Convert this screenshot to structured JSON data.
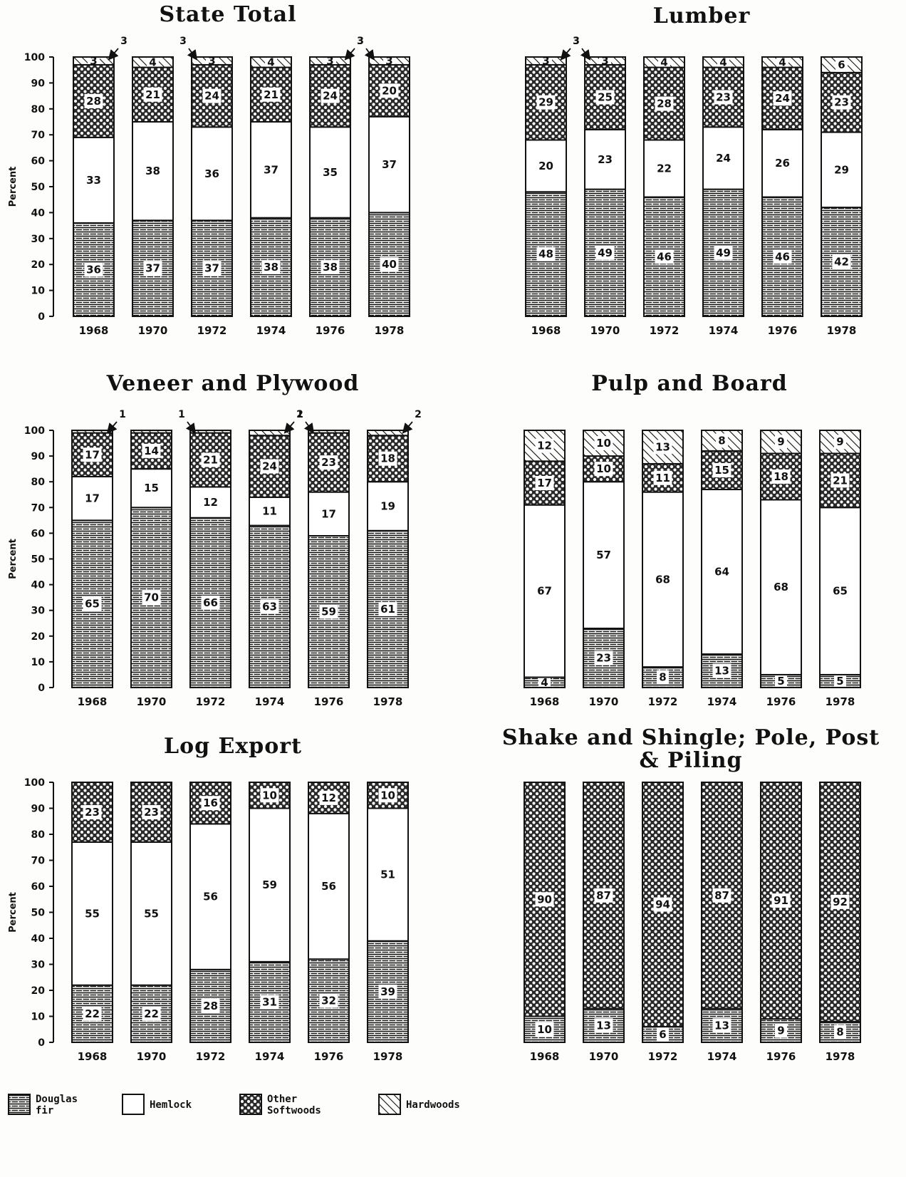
{
  "legend": {
    "items": [
      {
        "key": "douglas_fir",
        "label_lines": [
          "Douglas",
          "fir"
        ],
        "pattern": "pat-fir"
      },
      {
        "key": "hemlock",
        "label_lines": [
          "Hemlock"
        ],
        "pattern": "white"
      },
      {
        "key": "other_softwoods",
        "label_lines": [
          "Other",
          "Softwoods"
        ],
        "pattern": "pat-soft"
      },
      {
        "key": "hardwoods",
        "label_lines": [
          "Hardwoods"
        ],
        "pattern": "pat-hard"
      }
    ]
  },
  "colors": {
    "ink": "#111111",
    "paper": "#fdfdfb"
  },
  "chart_data": [
    {
      "type": "bar",
      "stacked": true,
      "title": "State Total",
      "ylabel": "Percent",
      "ylim": [
        0,
        100
      ],
      "yticks": [
        0,
        10,
        20,
        30,
        40,
        50,
        60,
        70,
        80,
        90,
        100
      ],
      "categories": [
        "1968",
        "1970",
        "1972",
        "1974",
        "1976",
        "1978"
      ],
      "series": [
        {
          "name": "Douglas fir",
          "values": [
            36,
            37,
            37,
            38,
            38,
            40
          ]
        },
        {
          "name": "Hemlock",
          "values": [
            33,
            38,
            36,
            37,
            35,
            37
          ]
        },
        {
          "name": "Other Softwoods",
          "values": [
            28,
            21,
            24,
            21,
            24,
            20
          ]
        },
        {
          "name": "Hardwoods",
          "values": [
            3,
            4,
            3,
            4,
            3,
            3
          ]
        }
      ],
      "annotations": [
        {
          "text": "3",
          "category_index": 0
        },
        {
          "text": "3",
          "category_index": 2
        },
        {
          "text": "3",
          "category_index": 4
        },
        {
          "text": "3",
          "category_index": 5
        }
      ]
    },
    {
      "type": "bar",
      "stacked": true,
      "title": "Lumber",
      "ylabel": "",
      "ylim": [
        0,
        100
      ],
      "yticks": [],
      "categories": [
        "1968",
        "1970",
        "1972",
        "1974",
        "1976",
        "1978"
      ],
      "series": [
        {
          "name": "Douglas fir",
          "values": [
            48,
            49,
            46,
            49,
            46,
            42
          ]
        },
        {
          "name": "Hemlock",
          "values": [
            20,
            23,
            22,
            24,
            26,
            29
          ]
        },
        {
          "name": "Other Softwoods",
          "values": [
            29,
            25,
            28,
            23,
            24,
            23
          ]
        },
        {
          "name": "Hardwoods",
          "values": [
            3,
            3,
            4,
            4,
            4,
            6
          ]
        }
      ],
      "annotations": [
        {
          "text": "3",
          "category_index": 0
        },
        {
          "text": "3",
          "category_index": 1
        }
      ]
    },
    {
      "type": "bar",
      "stacked": true,
      "title": "Veneer and Plywood",
      "ylabel": "Percent",
      "ylim": [
        0,
        100
      ],
      "yticks": [
        0,
        10,
        20,
        30,
        40,
        50,
        60,
        70,
        80,
        90,
        100
      ],
      "categories": [
        "1968",
        "1970",
        "1972",
        "1974",
        "1976",
        "1978"
      ],
      "series": [
        {
          "name": "Douglas fir",
          "values": [
            65,
            70,
            66,
            63,
            59,
            61
          ]
        },
        {
          "name": "Hemlock",
          "values": [
            17,
            15,
            12,
            11,
            17,
            19
          ]
        },
        {
          "name": "Other Softwoods",
          "values": [
            17,
            14,
            21,
            24,
            23,
            18
          ]
        },
        {
          "name": "Hardwoods",
          "values": [
            1,
            1,
            1,
            2,
            1,
            2
          ]
        }
      ],
      "annotations": [
        {
          "text": "1",
          "category_index": 0
        },
        {
          "text": "1",
          "category_index": 2
        },
        {
          "text": "2",
          "category_index": 3
        },
        {
          "text": "1",
          "category_index": 4
        },
        {
          "text": "2",
          "category_index": 5
        }
      ]
    },
    {
      "type": "bar",
      "stacked": true,
      "title": "Pulp and Board",
      "ylabel": "",
      "ylim": [
        0,
        100
      ],
      "yticks": [],
      "categories": [
        "1968",
        "1970",
        "1972",
        "1974",
        "1976",
        "1978"
      ],
      "series": [
        {
          "name": "Douglas fir",
          "values": [
            4,
            23,
            8,
            13,
            5,
            5
          ]
        },
        {
          "name": "Hemlock",
          "values": [
            67,
            57,
            68,
            64,
            68,
            65
          ]
        },
        {
          "name": "Other Softwoods",
          "values": [
            17,
            10,
            11,
            15,
            18,
            21
          ]
        },
        {
          "name": "Hardwoods",
          "values": [
            12,
            10,
            13,
            8,
            9,
            9
          ]
        }
      ],
      "annotations": []
    },
    {
      "type": "bar",
      "stacked": true,
      "title": "Log Export",
      "ylabel": "Percent",
      "ylim": [
        0,
        100
      ],
      "yticks": [
        0,
        10,
        20,
        30,
        40,
        50,
        60,
        70,
        80,
        90,
        100
      ],
      "categories": [
        "1968",
        "1970",
        "1972",
        "1974",
        "1976",
        "1978"
      ],
      "series": [
        {
          "name": "Douglas fir",
          "values": [
            22,
            22,
            28,
            31,
            32,
            39
          ]
        },
        {
          "name": "Hemlock",
          "values": [
            55,
            55,
            56,
            59,
            56,
            51
          ]
        },
        {
          "name": "Other Softwoods",
          "values": [
            23,
            23,
            16,
            10,
            12,
            10
          ]
        },
        {
          "name": "Hardwoods",
          "values": [
            0,
            0,
            0,
            0,
            0,
            0
          ]
        }
      ],
      "annotations": []
    },
    {
      "type": "bar",
      "stacked": true,
      "title": "Shake and Shingle; Pole, Post",
      "title_line2": "& Piling",
      "ylabel": "",
      "ylim": [
        0,
        100
      ],
      "yticks": [],
      "categories": [
        "1968",
        "1970",
        "1972",
        "1974",
        "1976",
        "1978"
      ],
      "series": [
        {
          "name": "Douglas fir",
          "values": [
            10,
            13,
            6,
            13,
            9,
            8
          ]
        },
        {
          "name": "Hemlock",
          "values": [
            0,
            0,
            0,
            0,
            0,
            0
          ]
        },
        {
          "name": "Other Softwoods",
          "values": [
            90,
            87,
            94,
            87,
            91,
            92
          ]
        },
        {
          "name": "Hardwoods",
          "values": [
            0,
            0,
            0,
            0,
            0,
            0
          ]
        }
      ],
      "annotations": []
    }
  ]
}
